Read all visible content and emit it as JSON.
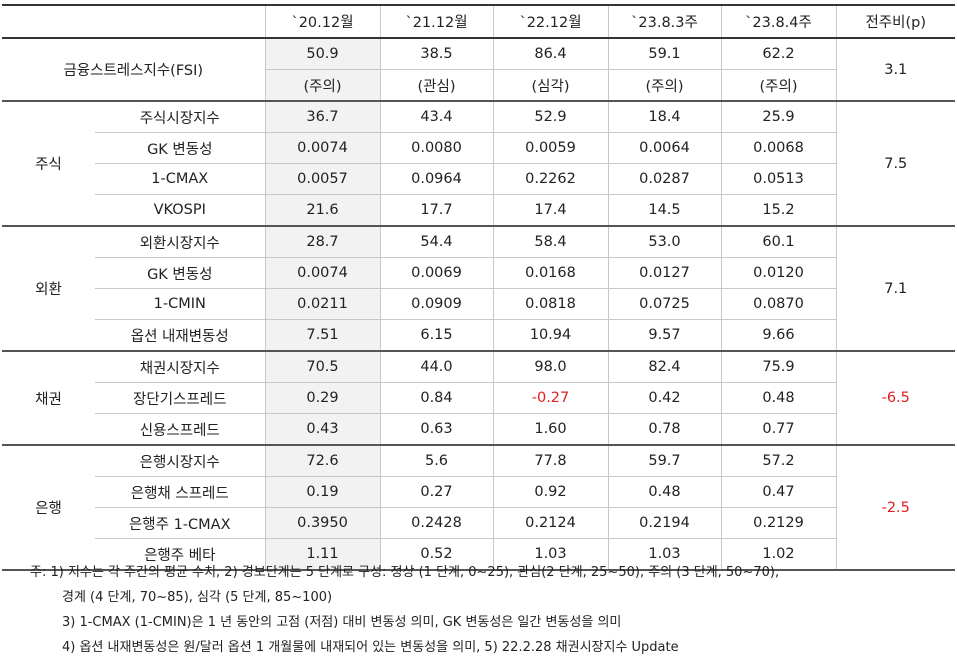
{
  "header": {
    "columns": [
      "`20.12월",
      "`21.12월",
      "`22.12월",
      "`23.8.3주",
      "`23.8.4주",
      "전주비(p)"
    ]
  },
  "fsi": {
    "label": "금융스트레스지수(FSI)",
    "values": [
      "50.9",
      "38.5",
      "86.4",
      "59.1",
      "62.2"
    ],
    "grades": [
      "(주의)",
      "(관심)",
      "(심각)",
      "(주의)",
      "(주의)"
    ],
    "change": "3.1"
  },
  "table": {
    "groups": [
      {
        "label": "주식",
        "change": "7.5",
        "rows": [
          {
            "label": "주식시장지수",
            "values": [
              "36.7",
              "43.4",
              "52.9",
              "18.4",
              "25.9"
            ]
          },
          {
            "label": "GK 변동성",
            "values": [
              "0.0074",
              "0.0080",
              "0.0059",
              "0.0064",
              "0.0068"
            ]
          },
          {
            "label": "1-CMAX",
            "values": [
              "0.0057",
              "0.0964",
              "0.2262",
              "0.0287",
              "0.0513"
            ]
          },
          {
            "label": "VKOSPI",
            "values": [
              "21.6",
              "17.7",
              "17.4",
              "14.5",
              "15.2"
            ]
          }
        ]
      },
      {
        "label": "외환",
        "change": "7.1",
        "rows": [
          {
            "label": "외환시장지수",
            "values": [
              "28.7",
              "54.4",
              "58.4",
              "53.0",
              "60.1"
            ]
          },
          {
            "label": "GK 변동성",
            "values": [
              "0.0074",
              "0.0069",
              "0.0168",
              "0.0127",
              "0.0120"
            ]
          },
          {
            "label": "1-CMIN",
            "values": [
              "0.0211",
              "0.0909",
              "0.0818",
              "0.0725",
              "0.0870"
            ]
          },
          {
            "label": "옵션 내재변동성",
            "values": [
              "7.51",
              "6.15",
              "10.94",
              "9.57",
              "9.66"
            ]
          }
        ]
      },
      {
        "label": "채권",
        "change": "-6.5",
        "rows": [
          {
            "label": "채권시장지수",
            "values": [
              "70.5",
              "44.0",
              "98.0",
              "82.4",
              "75.9"
            ]
          },
          {
            "label": "장단기스프레드",
            "values": [
              "0.29",
              "0.84",
              "-0.27",
              "0.42",
              "0.48"
            ]
          },
          {
            "label": "신용스프레드",
            "values": [
              "0.43",
              "0.63",
              "1.60",
              "0.78",
              "0.77"
            ]
          }
        ]
      },
      {
        "label": "은행",
        "change": "-2.5",
        "rows": [
          {
            "label": "은행시장지수",
            "values": [
              "72.6",
              "5.6",
              "77.8",
              "59.7",
              "57.2"
            ]
          },
          {
            "label": "은행채 스프레드",
            "values": [
              "0.19",
              "0.27",
              "0.92",
              "0.48",
              "0.47"
            ]
          },
          {
            "label": "은행주 1-CMAX",
            "values": [
              "0.3950",
              "0.2428",
              "0.2124",
              "0.2194",
              "0.2129"
            ]
          },
          {
            "label": "은행주 베타",
            "values": [
              "1.11",
              "0.52",
              "1.03",
              "1.03",
              "1.02"
            ]
          }
        ]
      }
    ]
  },
  "notes": [
    "주: 1) 지수는 각 주간의 평균 수치, 2) 경보단계는 5 단계로 구성: 정상 (1 단계, 0~25), 관심(2 단계, 25~50), 주의 (3 단계, 50~70),",
    "경계 (4 단계, 70~85), 심각 (5 단계, 85~100)",
    "3) 1-CMAX (1-CMIN)은 1 년 동안의 고점 (저점) 대비 변동성 의미, GK 변동성은 일간 변동성을 의미",
    "4) 옵션 내재변동성은 원/달러 옵션 1 개월물에 내재되어 있는 변동성을 의미, 5) 22.2.28 채권시장지수 Update"
  ]
}
